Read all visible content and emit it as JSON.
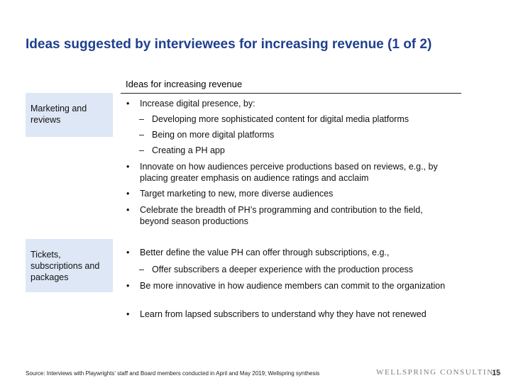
{
  "title": "Ideas suggested by interviewees for increasing revenue (1 of 2)",
  "column_header": "Ideas for increasing revenue",
  "categories": [
    {
      "label": "Marketing and reviews"
    },
    {
      "label": "Tickets, subscriptions and packages"
    }
  ],
  "bullet_marker": "•",
  "dash_marker": "–",
  "bullets": [
    {
      "text": "Increase digital presence, by:"
    },
    {
      "text": "Developing more sophisticated content for digital media platforms"
    },
    {
      "text": "Being on more digital platforms"
    },
    {
      "text": "Creating a PH app"
    },
    {
      "text": "Innovate on how audiences perceive productions based on reviews, e.g., by placing greater emphasis on audience ratings and acclaim"
    },
    {
      "text": "Target marketing to new, more diverse audiences"
    },
    {
      "text": "Celebrate the breadth of PH’s programming and contribution to the field, beyond season productions"
    },
    {
      "text": "Better define the value PH can offer through subscriptions, e.g.,"
    },
    {
      "text": "Offer subscribers a deeper experience with the production process"
    },
    {
      "text": "Be more innovative in how audience members can commit to the organization"
    },
    {
      "text": "Learn from lapsed subscribers to understand why they have not renewed"
    }
  ],
  "footer": {
    "source": "Source: Interviews with Playwrights’ staff and Board members conducted in April and May 2019; Wellspring synthesis",
    "logo": "WELLSPRING CONSULTING",
    "page_number": "15"
  }
}
